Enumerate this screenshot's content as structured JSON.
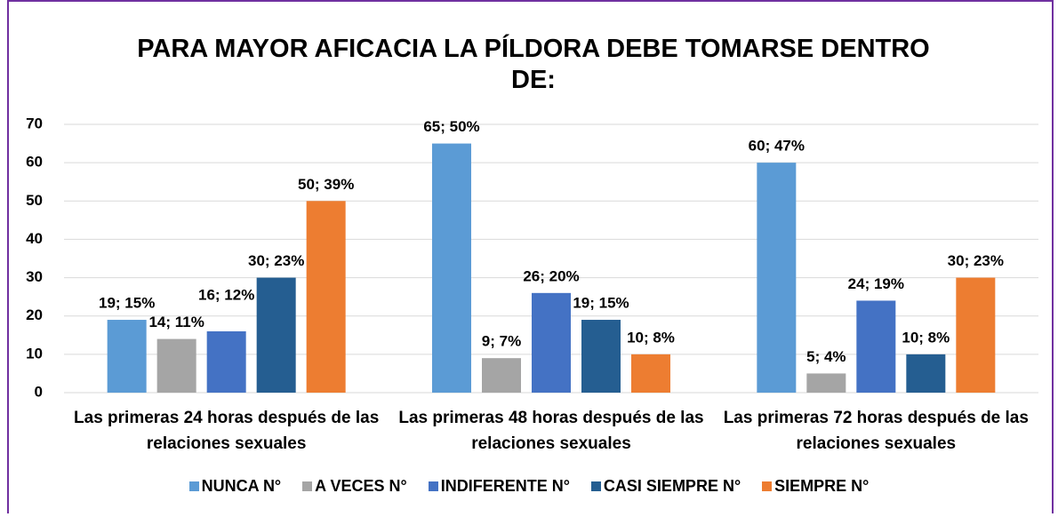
{
  "chart_data": {
    "type": "bar",
    "title": "PARA MAYOR AFICACIA LA PÍLDORA DEBE TOMARSE DENTRO DE:",
    "categories": [
      "Las primeras 24 horas después de las relaciones sexuales",
      "Las primeras 48 horas después de las relaciones sexuales",
      "Las primeras 72 horas después de las relaciones sexuales"
    ],
    "series": [
      {
        "name": "NUNCA N°",
        "color": "#5b9bd5",
        "values": [
          19,
          65,
          60
        ],
        "value_labels": [
          "19; 15%",
          "65; 50%",
          "60; 47%"
        ]
      },
      {
        "name": "A VECES N°",
        "color": "#a5a5a5",
        "values": [
          14,
          9,
          5
        ],
        "value_labels": [
          "14; 11%",
          "9; 7%",
          "5; 4%"
        ]
      },
      {
        "name": "INDIFERENTE N°",
        "color": "#4472c4",
        "values": [
          16,
          26,
          24
        ],
        "value_labels": [
          "16; 12%",
          "26; 20%",
          "24; 19%"
        ]
      },
      {
        "name": "CASI SIEMPRE N°",
        "color": "#255e91",
        "values": [
          30,
          19,
          10
        ],
        "value_labels": [
          "30; 23%",
          "19; 15%",
          "10; 8%"
        ]
      },
      {
        "name": "SIEMPRE N°",
        "color": "#ed7d31",
        "values": [
          50,
          10,
          30
        ],
        "value_labels": [
          "50; 39%",
          "10; 8%",
          "30; 23%"
        ]
      }
    ],
    "ylim": [
      0,
      70
    ],
    "yticks": [
      0,
      10,
      20,
      30,
      40,
      50,
      60,
      70
    ],
    "grid": true,
    "legend": "bottom"
  }
}
